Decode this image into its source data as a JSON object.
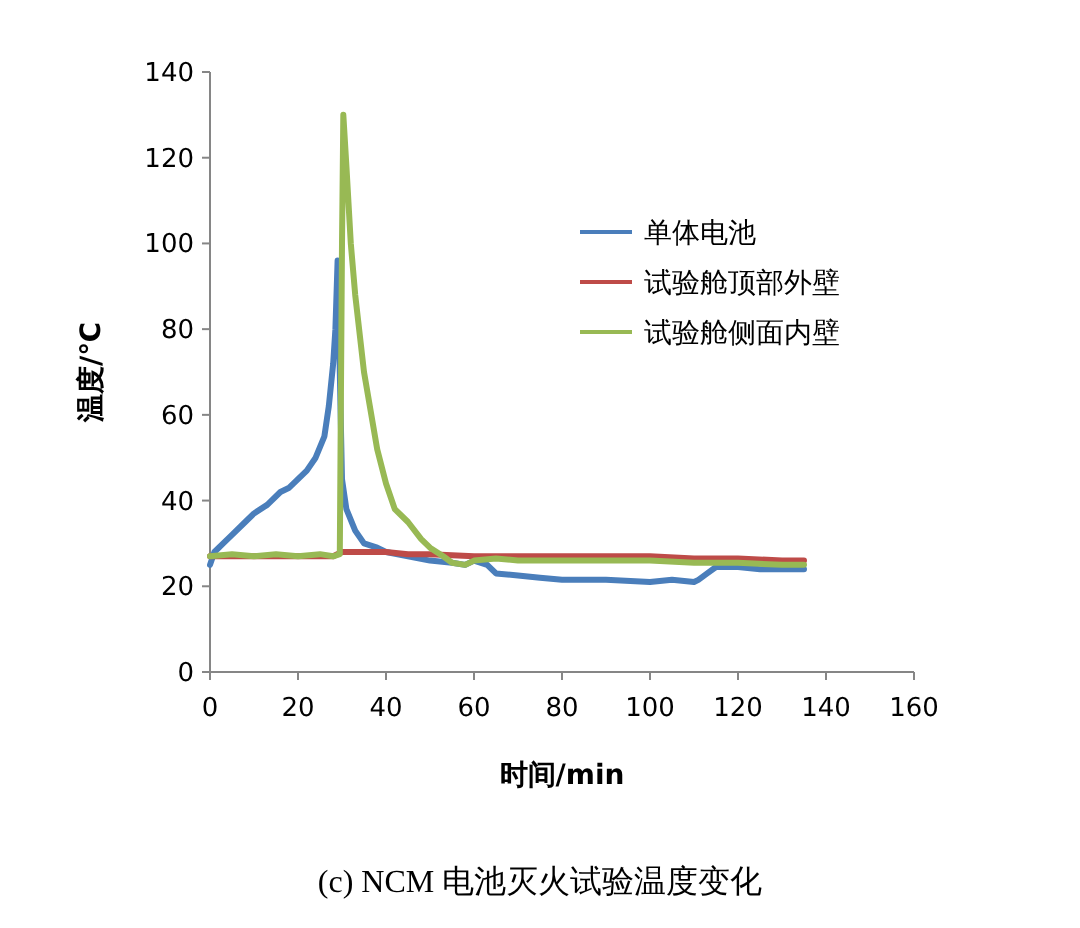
{
  "chart_data": {
    "type": "line",
    "xlabel": "时间/min",
    "ylabel": "温度/℃",
    "annotations": [
      "(c) NCM 电池灭火试验温度变化"
    ],
    "xlim": [
      0,
      160
    ],
    "xticks": [
      0,
      20,
      40,
      60,
      80,
      100,
      120,
      140,
      160
    ],
    "ylim": [
      0,
      140
    ],
    "yticks": [
      0,
      20,
      40,
      60,
      80,
      100,
      120,
      140
    ],
    "grid": false,
    "legend": "top right",
    "marker": "none",
    "line_style": "solid",
    "series": [
      {
        "name": "单体电池",
        "color": "#4a7ebb",
        "x": [
          0,
          1,
          3,
          5,
          8,
          10,
          13,
          16,
          18,
          20,
          22,
          24,
          26,
          27,
          28,
          28.5,
          29,
          29.5,
          30,
          31,
          33,
          35,
          38,
          40,
          45,
          50,
          55,
          58,
          60,
          63,
          65,
          70,
          75,
          80,
          90,
          100,
          105,
          110,
          111,
          113,
          115,
          120,
          125,
          130,
          135
        ],
        "values": [
          25,
          28,
          30,
          32,
          35,
          37,
          39,
          42,
          43,
          45,
          47,
          50,
          55,
          62,
          72,
          80,
          96,
          70,
          45,
          38,
          33,
          30,
          29,
          28,
          27,
          26,
          25.5,
          25,
          26,
          25,
          23,
          22.5,
          22,
          21.5,
          21.5,
          21,
          21.5,
          21,
          21.5,
          23,
          24.5,
          24.5,
          24,
          24,
          24
        ]
      },
      {
        "name": "试验舱顶部外壁",
        "color": "#be4b48",
        "x": [
          0,
          10,
          20,
          28,
          30,
          35,
          40,
          45,
          50,
          60,
          70,
          80,
          90,
          100,
          110,
          120,
          130,
          135
        ],
        "values": [
          27,
          27,
          27,
          27,
          28,
          28,
          28,
          27.5,
          27.5,
          27,
          27,
          27,
          27,
          27,
          26.5,
          26.5,
          26,
          26
        ]
      },
      {
        "name": "试验舱侧面内壁",
        "color": "#98b954",
        "x": [
          0,
          5,
          10,
          15,
          20,
          25,
          28,
          29.5,
          30,
          30.3,
          31,
          32,
          33,
          35,
          37,
          38,
          40,
          42,
          45,
          48,
          50,
          53,
          55,
          58,
          60,
          65,
          70,
          80,
          90,
          100,
          110,
          120,
          130,
          135
        ],
        "values": [
          27,
          27.5,
          27,
          27.5,
          27,
          27.5,
          27,
          27.5,
          100,
          130,
          118,
          100,
          88,
          70,
          58,
          52,
          44,
          38,
          35,
          31,
          29,
          27,
          25.5,
          25,
          26,
          26.5,
          26,
          26,
          26,
          26,
          25.5,
          25.5,
          25,
          25
        ]
      }
    ]
  }
}
